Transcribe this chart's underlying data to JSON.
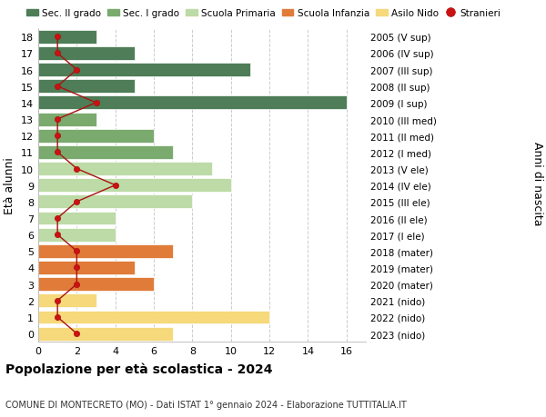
{
  "ages": [
    18,
    17,
    16,
    15,
    14,
    13,
    12,
    11,
    10,
    9,
    8,
    7,
    6,
    5,
    4,
    3,
    2,
    1,
    0
  ],
  "right_labels": [
    "2005 (V sup)",
    "2006 (IV sup)",
    "2007 (III sup)",
    "2008 (II sup)",
    "2009 (I sup)",
    "2010 (III med)",
    "2011 (II med)",
    "2012 (I med)",
    "2013 (V ele)",
    "2014 (IV ele)",
    "2015 (III ele)",
    "2016 (II ele)",
    "2017 (I ele)",
    "2018 (mater)",
    "2019 (mater)",
    "2020 (mater)",
    "2021 (nido)",
    "2022 (nido)",
    "2023 (nido)"
  ],
  "bar_values": [
    3,
    5,
    11,
    5,
    16,
    3,
    6,
    7,
    9,
    10,
    8,
    4,
    4,
    7,
    5,
    6,
    3,
    12,
    7
  ],
  "bar_colors": [
    "#4e7d57",
    "#4e7d57",
    "#4e7d57",
    "#4e7d57",
    "#4e7d57",
    "#7aaa6e",
    "#7aaa6e",
    "#7aaa6e",
    "#bddba6",
    "#bddba6",
    "#bddba6",
    "#bddba6",
    "#bddba6",
    "#e07b39",
    "#e07b39",
    "#e07b39",
    "#f5d97a",
    "#f5d97a",
    "#f5d97a"
  ],
  "stranieri_values": [
    1,
    1,
    2,
    1,
    3,
    1,
    1,
    1,
    2,
    4,
    2,
    1,
    1,
    2,
    2,
    2,
    1,
    1,
    2
  ],
  "legend_labels": [
    "Sec. II grado",
    "Sec. I grado",
    "Scuola Primaria",
    "Scuola Infanzia",
    "Asilo Nido",
    "Stranieri"
  ],
  "legend_colors": [
    "#4e7d57",
    "#7aaa6e",
    "#bddba6",
    "#e07b39",
    "#f5d97a",
    "#cc1111"
  ],
  "title": "Popolazione per età scolastica - 2024",
  "subtitle": "COMUNE DI MONTECRETO (MO) - Dati ISTAT 1° gennaio 2024 - Elaborazione TUTTITALIA.IT",
  "ylabel_left": "Età alunni",
  "ylabel_right": "Anni di nascita",
  "xlim": [
    0,
    17
  ],
  "xticks": [
    0,
    2,
    4,
    6,
    8,
    10,
    12,
    14,
    16
  ],
  "background_color": "#ffffff",
  "grid_color": "#cccccc"
}
